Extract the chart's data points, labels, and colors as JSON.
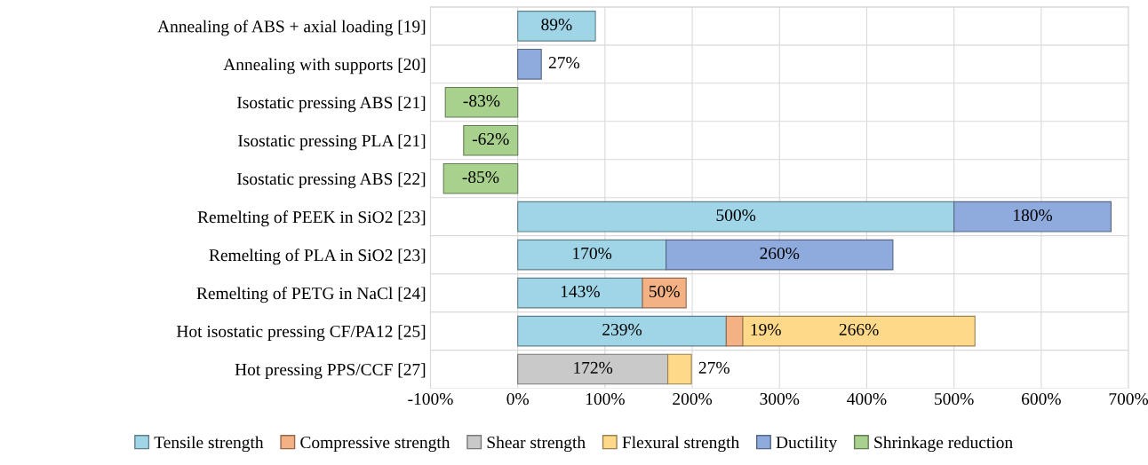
{
  "chart_data": {
    "type": "bar",
    "orientation": "horizontal",
    "stacked": true,
    "categories": [
      "Annealing of ABS + axial loading [19]",
      "Annealing with supports [20]",
      "Isostatic pressing ABS [21]",
      "Isostatic pressing PLA [21]",
      "Isostatic pressing ABS [22]",
      "Remelting of PEEK in SiO2 [23]",
      "Remelting of PLA in SiO2 [23]",
      "Remelting of PETG in NaCl [24]",
      "Hot isostatic pressing CF/PA12 [25]",
      "Hot pressing PPS/CCF [27]"
    ],
    "series": [
      {
        "name": "Tensile strength",
        "color": "#9fd5e6",
        "values": [
          89,
          null,
          null,
          null,
          null,
          500,
          170,
          143,
          239,
          null
        ],
        "value_labels": [
          "89%",
          null,
          null,
          null,
          null,
          "500%",
          "170%",
          "143%",
          "239%",
          null
        ]
      },
      {
        "name": "Compressive strength",
        "color": "#f4b183",
        "values": [
          null,
          null,
          null,
          null,
          null,
          null,
          null,
          50,
          19,
          null
        ],
        "value_labels": [
          null,
          null,
          null,
          null,
          null,
          null,
          null,
          "50%",
          "19%",
          null
        ]
      },
      {
        "name": "Shear strength",
        "color": "#c9c9c9",
        "values": [
          null,
          null,
          null,
          null,
          null,
          null,
          null,
          null,
          null,
          172
        ],
        "value_labels": [
          null,
          null,
          null,
          null,
          null,
          null,
          null,
          null,
          null,
          "172%"
        ]
      },
      {
        "name": "Flexural strength",
        "color": "#ffd98a",
        "values": [
          null,
          null,
          null,
          null,
          null,
          null,
          null,
          null,
          266,
          27
        ],
        "value_labels": [
          null,
          null,
          null,
          null,
          null,
          null,
          null,
          null,
          "266%",
          "27%"
        ]
      },
      {
        "name": "Ductility",
        "color": "#8faadc",
        "values": [
          null,
          27,
          null,
          null,
          null,
          180,
          260,
          null,
          null,
          null
        ],
        "value_labels": [
          null,
          "27%",
          null,
          null,
          null,
          "180%",
          "260%",
          null,
          null,
          null
        ]
      },
      {
        "name": "Shrinkage reduction",
        "color": "#a9d18e",
        "values": [
          null,
          null,
          -83,
          -62,
          -85,
          null,
          null,
          null,
          null,
          null
        ],
        "value_labels": [
          null,
          null,
          "-83%",
          "-62%",
          "-85%",
          null,
          null,
          null,
          null,
          null
        ]
      }
    ],
    "xlim": [
      -100,
      700
    ],
    "xticks": [
      {
        "value": -100,
        "label": "-100%"
      },
      {
        "value": 0,
        "label": "0%"
      },
      {
        "value": 100,
        "label": "100%"
      },
      {
        "value": 200,
        "label": "200%"
      },
      {
        "value": 300,
        "label": "300%"
      },
      {
        "value": 400,
        "label": "400%"
      },
      {
        "value": 500,
        "label": "500%"
      },
      {
        "value": 600,
        "label": "600%"
      },
      {
        "value": 700,
        "label": "700%"
      }
    ],
    "grid": "x",
    "legend": "bottom"
  }
}
